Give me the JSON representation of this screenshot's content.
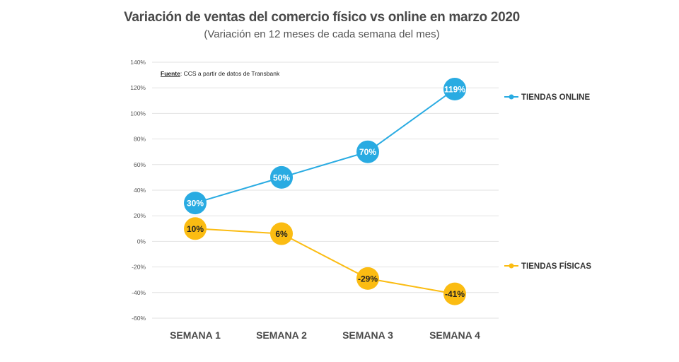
{
  "chart_data": {
    "type": "line",
    "title": "Variación de ventas del comercio físico vs online en marzo 2020",
    "subtitle": "(Variación en 12 meses de cada semana del mes)",
    "source_label": "Fuente",
    "source_text": ": CCS a partir de datos de Transbank",
    "categories": [
      "SEMANA 1",
      "SEMANA 2",
      "SEMANA 3",
      "SEMANA 4"
    ],
    "yticks": [
      "140%",
      "120%",
      "100%",
      "80%",
      "60%",
      "40%",
      "20%",
      "0%",
      "-20%",
      "-40%",
      "-60%"
    ],
    "ylim": [
      -60,
      140
    ],
    "grid": true,
    "legend_position": "right",
    "series": [
      {
        "name": "TIENDAS ONLINE",
        "values": [
          30,
          50,
          70,
          119
        ],
        "labels": [
          "30%",
          "50%",
          "70%",
          "119%"
        ],
        "color": "#29abe2",
        "label_color": "#ffffff"
      },
      {
        "name": "TIENDAS FÍSICAS",
        "values": [
          10,
          6,
          -29,
          -41
        ],
        "labels": [
          "10%",
          "6%",
          "-29%",
          "-41%"
        ],
        "color": "#fbbc12",
        "label_color": "#222222"
      }
    ]
  }
}
